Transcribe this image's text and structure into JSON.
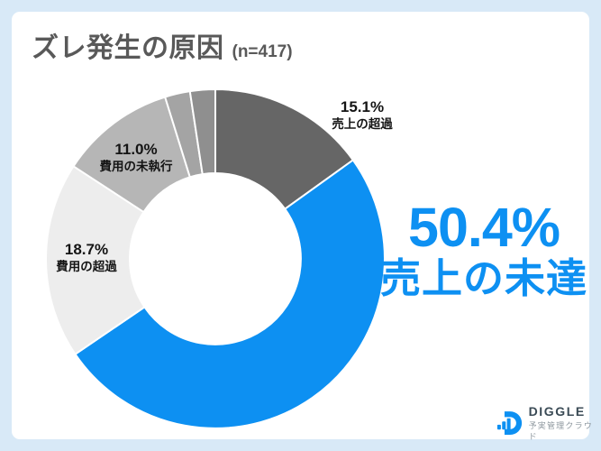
{
  "header": {
    "title": "ズレ発生の原因",
    "sample": "(n=417)"
  },
  "chart_data": {
    "type": "pie",
    "donut": true,
    "title": "ズレ発生の原因",
    "sample_label": "(n=417)",
    "n": 417,
    "start_angle_deg": 0,
    "direction": "clockwise",
    "inner_radius_ratio": 0.505,
    "slices": [
      {
        "label": "売上の超過",
        "value": 15.1,
        "color": "#666666"
      },
      {
        "label": "売上の未達",
        "value": 50.4,
        "color": "#0d90f2"
      },
      {
        "label": "費用の超過",
        "value": 18.7,
        "color": "#ededed"
      },
      {
        "label": "費用の未執行",
        "value": 11.0,
        "color": "#b6b6b6"
      },
      {
        "label": "",
        "value": 2.4,
        "color": "#a4a4a4"
      },
      {
        "label": "",
        "value": 2.4,
        "color": "#8f8f8f"
      }
    ]
  },
  "callouts": {
    "sales_shortfall": {
      "pct": "50.4%",
      "label": "売上の未達"
    },
    "sales_excess": {
      "pct": "15.1%",
      "label": "売上の超過"
    },
    "expense_excess": {
      "pct": "18.7%",
      "label": "費用の超過"
    },
    "expense_unexecuted": {
      "pct": "11.0%",
      "label": "費用の未執行"
    }
  },
  "logo": {
    "brand": "DIGGLE",
    "tagline": "予実管理クラウド"
  },
  "colors": {
    "accent_blue": "#0d90f2",
    "title_gray": "#595959",
    "frame_blue": "#d8e9f7",
    "label_black": "#141414"
  }
}
